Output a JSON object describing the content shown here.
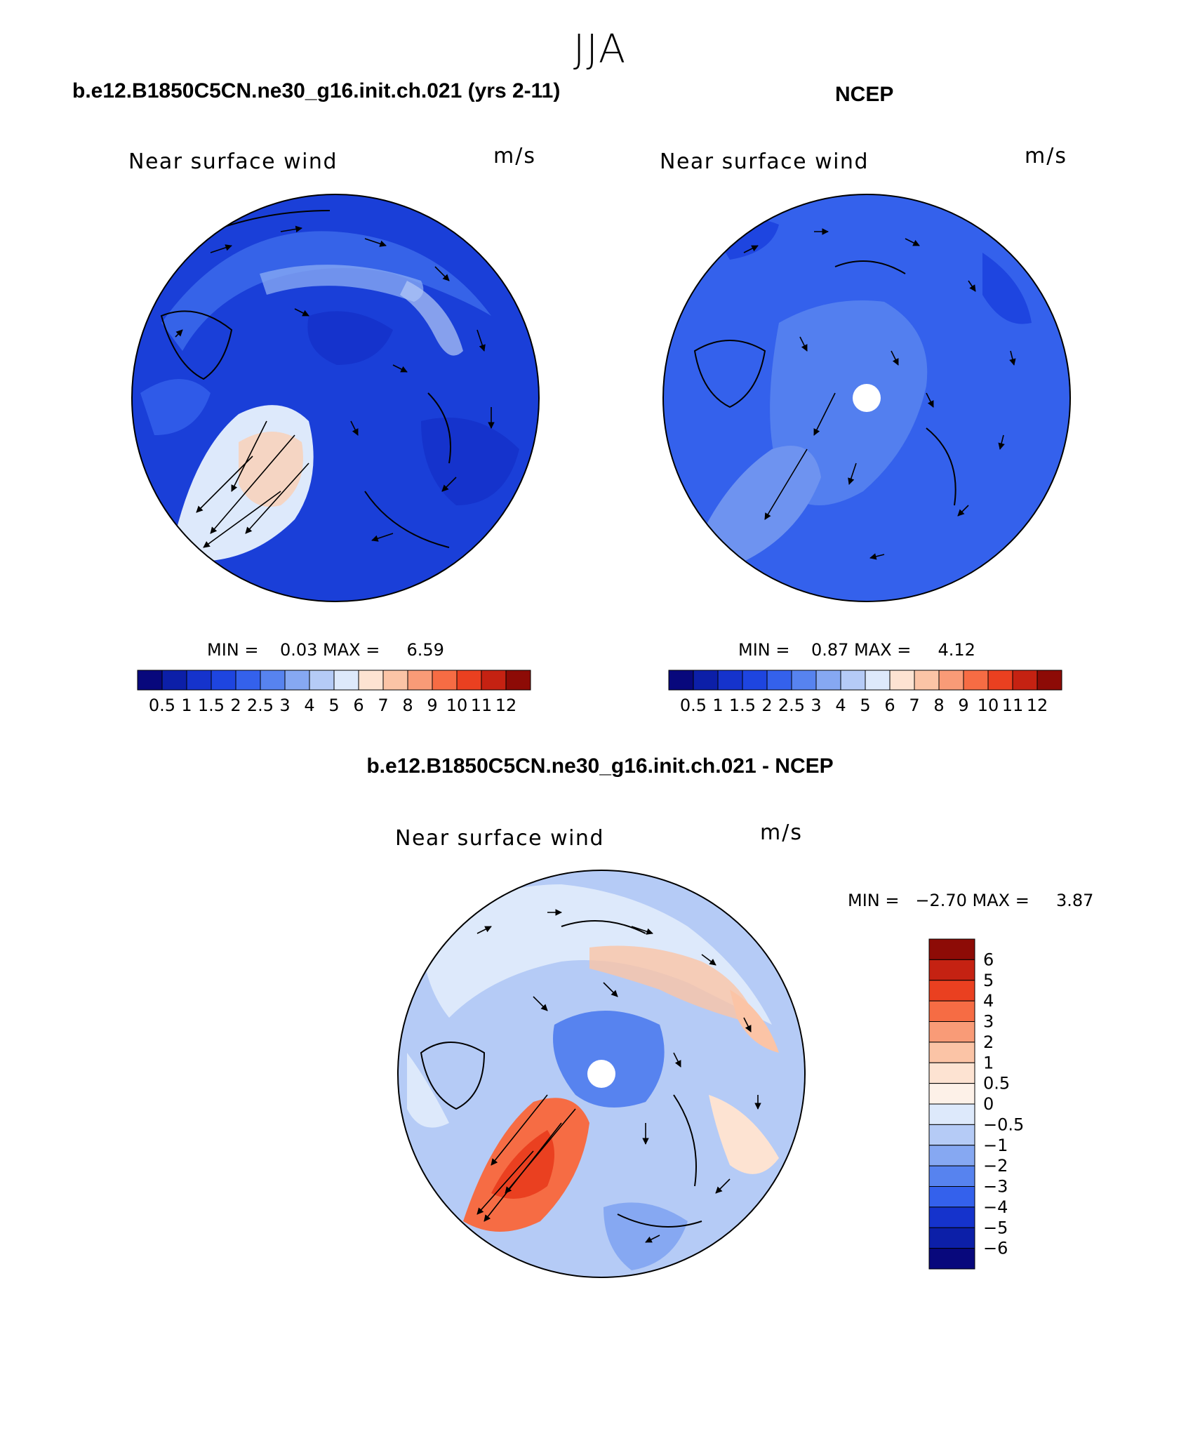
{
  "title": "JJA",
  "panels": {
    "model": {
      "case_title": "b.e12.B1850C5CN.ne30_g16.init.ch.021 (yrs 2-11)",
      "label": "Near surface wind",
      "units": "m/s",
      "minmax": "MIN =    0.03 MAX =     6.59"
    },
    "obs": {
      "case_title": "NCEP",
      "label": "Near surface wind",
      "units": "m/s",
      "minmax": "MIN =    0.87 MAX =     4.12"
    },
    "diff": {
      "case_title": "b.e12.B1850C5CN.ne30_g16.init.ch.021 - NCEP",
      "label": "Near surface wind",
      "units": "m/s",
      "minmax": "MIN =   −2.70 MAX =     3.87"
    }
  },
  "colorbar_abs": {
    "labels": [
      "0.5",
      "1",
      "1.5",
      "2",
      "2.5",
      "3",
      "4",
      "5",
      "6",
      "7",
      "8",
      "9",
      "10",
      "11",
      "12"
    ],
    "colors": [
      "#08087c",
      "#0c1fa8",
      "#1533cc",
      "#1e45e0",
      "#3461ec",
      "#5783ef",
      "#86a8f2",
      "#b5cbf6",
      "#dde9fb",
      "#fde3d2",
      "#fbc4a6",
      "#f99b77",
      "#f66c44",
      "#ea4020",
      "#c52212",
      "#8d0b06"
    ]
  },
  "colorbar_diff": {
    "labels": [
      "6",
      "5",
      "4",
      "3",
      "2",
      "1",
      "0.5",
      "0",
      "−0.5",
      "−1",
      "−2",
      "−3",
      "−4",
      "−5",
      "−6"
    ],
    "colors": [
      "#8d0b06",
      "#c52212",
      "#ea4020",
      "#f66c44",
      "#f99b77",
      "#fbc4a6",
      "#fde3d2",
      "#fdf1e8",
      "#dde9fb",
      "#b5cbf6",
      "#86a8f2",
      "#5783ef",
      "#3461ec",
      "#1533cc",
      "#0c1fa8",
      "#08087c"
    ]
  }
}
